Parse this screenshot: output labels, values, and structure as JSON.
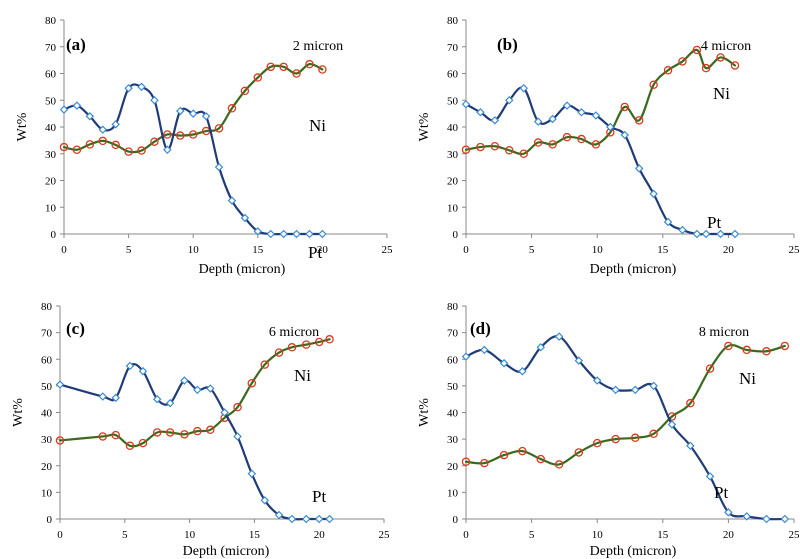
{
  "chart_data": [
    {
      "type": "line",
      "panel_label": "(a)",
      "condition": "2 micron",
      "xlabel": "Depth (micron)",
      "ylabel": "Wt%",
      "xlim": [
        0,
        25
      ],
      "ylim": [
        0,
        80
      ],
      "xticks": [
        "0",
        "5",
        "10",
        "15",
        "20",
        "25"
      ],
      "yticks": [
        "0",
        "10",
        "20",
        "30",
        "40",
        "50",
        "60",
        "70",
        "80"
      ],
      "grid": false,
      "series": [
        {
          "name": "Ni",
          "color": "#3a6a1e",
          "marker": "circle",
          "marker_color": "#d93a1e",
          "x": [
            0,
            1,
            2,
            3,
            4,
            5,
            6,
            7,
            8,
            9,
            10,
            11,
            12,
            13,
            14,
            15,
            16,
            17,
            18,
            19,
            20,
            21
          ],
          "y": [
            32.5,
            31.5,
            33.5,
            34.8,
            33.3,
            30.8,
            31.2,
            34.5,
            37.2,
            36.8,
            37.2,
            38.5,
            39.5,
            47,
            53.5,
            58.5,
            62.5,
            62.5,
            60,
            63.5,
            61.5,
            null
          ]
        },
        {
          "name": "Pt",
          "color": "#1f3c78",
          "marker": "diamond",
          "marker_color": "#3b8ad0",
          "x": [
            0,
            1,
            2,
            3,
            4,
            5,
            6,
            7,
            8,
            9,
            10,
            11,
            12,
            13,
            14,
            15,
            16,
            17,
            18,
            19,
            20,
            21
          ],
          "y": [
            46.5,
            48,
            44,
            39,
            41,
            54.5,
            55,
            50,
            31.5,
            46,
            45,
            44,
            25,
            12.5,
            6,
            1,
            0,
            0,
            0,
            0,
            0,
            null
          ]
        }
      ]
    },
    {
      "type": "line",
      "panel_label": "(b)",
      "condition": "4 micron",
      "xlabel": "Depth (micron)",
      "ylabel": "Wt%",
      "xlim": [
        0,
        25
      ],
      "ylim": [
        0,
        80
      ],
      "xticks": [
        "0",
        "5",
        "10",
        "15",
        "20",
        "25"
      ],
      "yticks": [
        "0",
        "10",
        "20",
        "30",
        "40",
        "50",
        "60",
        "70",
        "80"
      ],
      "grid": false,
      "series": [
        {
          "name": "Ni",
          "color": "#3a6a1e",
          "marker": "circle",
          "marker_color": "#d93a1e",
          "x": [
            0,
            1.1,
            2.2,
            3.3,
            4.4,
            5.5,
            6.6,
            7.7,
            8.8,
            9.9,
            11,
            12.1,
            13.2,
            14.3,
            15.4,
            16.5,
            17.6,
            18.3,
            19.4,
            20.5
          ],
          "y": [
            31.5,
            32.5,
            32.8,
            31.3,
            30,
            34.2,
            33.5,
            36.2,
            35.5,
            33.5,
            38,
            47.5,
            42.5,
            55.8,
            61.2,
            64.5,
            68.8,
            62,
            66,
            63
          ]
        },
        {
          "name": "Pt",
          "color": "#1f3c78",
          "marker": "diamond",
          "marker_color": "#3b8ad0",
          "x": [
            0,
            1.1,
            2.2,
            3.3,
            4.4,
            5.5,
            6.6,
            7.7,
            8.8,
            9.9,
            11,
            12.1,
            13.2,
            14.3,
            15.4,
            16.5,
            17.6,
            18.3,
            19.4,
            20.5
          ],
          "y": [
            48.5,
            45.5,
            42.5,
            50,
            54.5,
            42,
            43,
            48,
            45.5,
            44.3,
            40,
            37,
            24.5,
            15,
            4.5,
            1.5,
            0,
            0,
            0,
            0
          ]
        }
      ]
    },
    {
      "type": "line",
      "panel_label": "(c)",
      "condition": "6 micron",
      "xlabel": "Depth (micron)",
      "ylabel": "Wt%",
      "xlim": [
        0,
        25
      ],
      "ylim": [
        0,
        80
      ],
      "xticks": [
        "0",
        "5",
        "10",
        "15",
        "20",
        "25"
      ],
      "yticks": [
        "0",
        "10",
        "20",
        "30",
        "40",
        "50",
        "60",
        "70",
        "80"
      ],
      "grid": false,
      "series": [
        {
          "name": "Ni",
          "color": "#3a6a1e",
          "marker": "circle",
          "marker_color": "#d93a1e",
          "x": [
            0,
            3.3,
            4.3,
            5.4,
            6.4,
            7.5,
            8.5,
            9.6,
            10.6,
            11.6,
            12.7,
            13.7,
            14.8,
            15.8,
            16.9,
            17.9,
            19,
            20,
            20.8
          ],
          "y": [
            29.5,
            31,
            31.5,
            27.5,
            28.5,
            32.5,
            32.5,
            31.8,
            33,
            33.5,
            38,
            42,
            51,
            58,
            62.5,
            64.5,
            65.5,
            66.5,
            67.5
          ]
        },
        {
          "name": "Pt",
          "color": "#1f3c78",
          "marker": "diamond",
          "marker_color": "#3b8ad0",
          "x": [
            0,
            3.3,
            4.3,
            5.4,
            6.4,
            7.5,
            8.5,
            9.6,
            10.6,
            11.6,
            12.7,
            13.7,
            14.8,
            15.8,
            16.9,
            17.9,
            19,
            20,
            20.8
          ],
          "y": [
            50.5,
            46,
            45.5,
            57.5,
            55.5,
            45,
            43.5,
            52,
            48.5,
            49,
            40,
            31,
            17,
            7,
            1.5,
            0,
            0,
            0,
            0
          ]
        }
      ]
    },
    {
      "type": "line",
      "panel_label": "(d)",
      "condition": "8 micron",
      "xlabel": "Depth (micron)",
      "ylabel": "Wt%",
      "xlim": [
        0,
        25
      ],
      "ylim": [
        0,
        80
      ],
      "xticks": [
        "0",
        "5",
        "10",
        "15",
        "20",
        "25"
      ],
      "yticks": [
        "0",
        "10",
        "20",
        "30",
        "40",
        "50",
        "60",
        "70",
        "80"
      ],
      "grid": false,
      "series": [
        {
          "name": "Ni",
          "color": "#3a6a1e",
          "marker": "circle",
          "marker_color": "#d93a1e",
          "x": [
            0,
            1.4,
            2.9,
            4.3,
            5.7,
            7.1,
            8.6,
            10,
            11.4,
            12.9,
            14.3,
            15.7,
            17.1,
            18.6,
            20,
            21.4,
            22.9,
            24.3,
            25
          ],
          "y": [
            21.5,
            21,
            24,
            25.5,
            22.5,
            20.5,
            25,
            28.5,
            30,
            30.5,
            32,
            38.5,
            43.5,
            56.5,
            65,
            63.5,
            63,
            65,
            null
          ]
        },
        {
          "name": "Pt",
          "color": "#1f3c78",
          "marker": "diamond",
          "marker_color": "#3b8ad0",
          "x": [
            0,
            1.4,
            2.9,
            4.3,
            5.7,
            7.1,
            8.6,
            10,
            11.4,
            12.9,
            14.3,
            15.7,
            17.1,
            18.6,
            20,
            21.4,
            22.9,
            24.3,
            25
          ],
          "y": [
            61,
            63.5,
            58.5,
            55.5,
            64.5,
            68.5,
            59.5,
            52,
            48.5,
            48.5,
            50,
            35.5,
            27.5,
            16,
            2.5,
            1,
            0,
            0,
            null
          ]
        }
      ]
    }
  ]
}
